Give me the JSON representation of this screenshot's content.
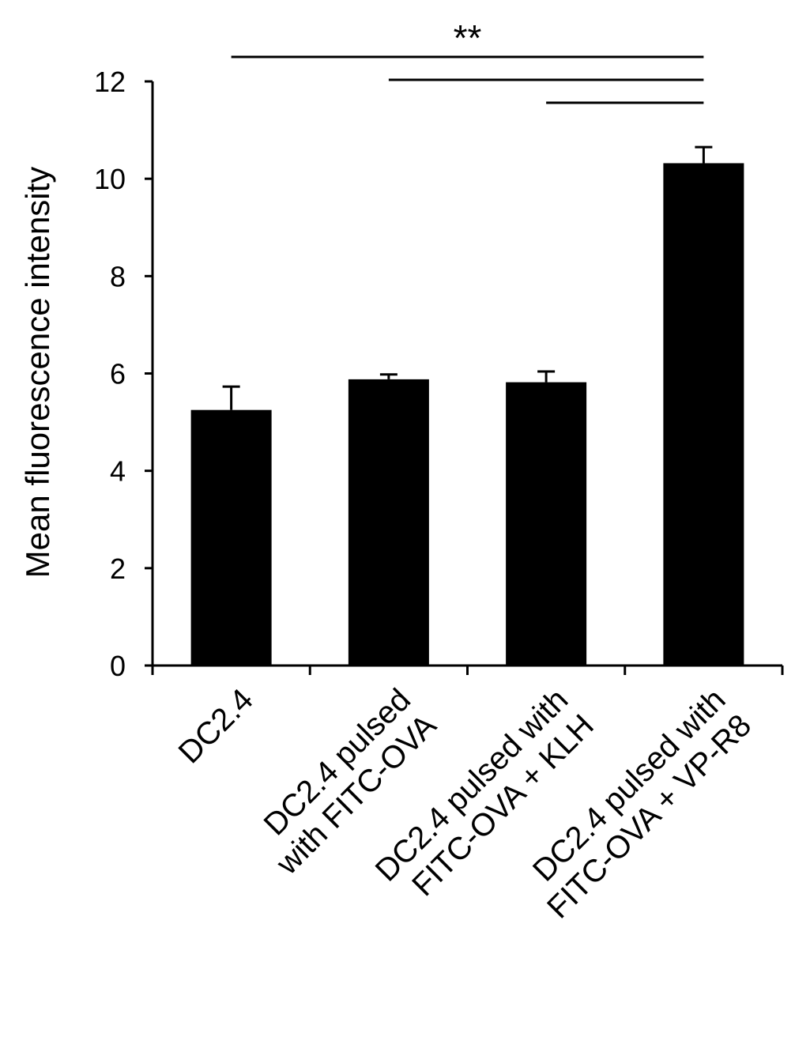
{
  "chart_data": {
    "type": "bar",
    "title": "",
    "xlabel": "",
    "ylabel": "Mean fluorescence intensity",
    "ylim": [
      0,
      12
    ],
    "yticks": [
      0,
      2,
      4,
      6,
      8,
      10,
      12
    ],
    "grid": false,
    "legend": "none",
    "bar_color": "#000000",
    "categories": [
      [
        "DC2.4"
      ],
      [
        "DC2.4 pulsed",
        "with FITC-OVA"
      ],
      [
        "DC2.4 pulsed with",
        "FITC-OVA + KLH"
      ],
      [
        "DC2.4 pulsed with",
        "FITC-OVA + VP-R8"
      ]
    ],
    "values": [
      5.25,
      5.88,
      5.82,
      10.32
    ],
    "errors": [
      0.48,
      0.1,
      0.22,
      0.33
    ],
    "significance": {
      "label": "**",
      "comparisons": [
        {
          "from": 0,
          "to": 3
        },
        {
          "from": 1,
          "to": 3
        },
        {
          "from": 2,
          "to": 3
        }
      ]
    }
  }
}
